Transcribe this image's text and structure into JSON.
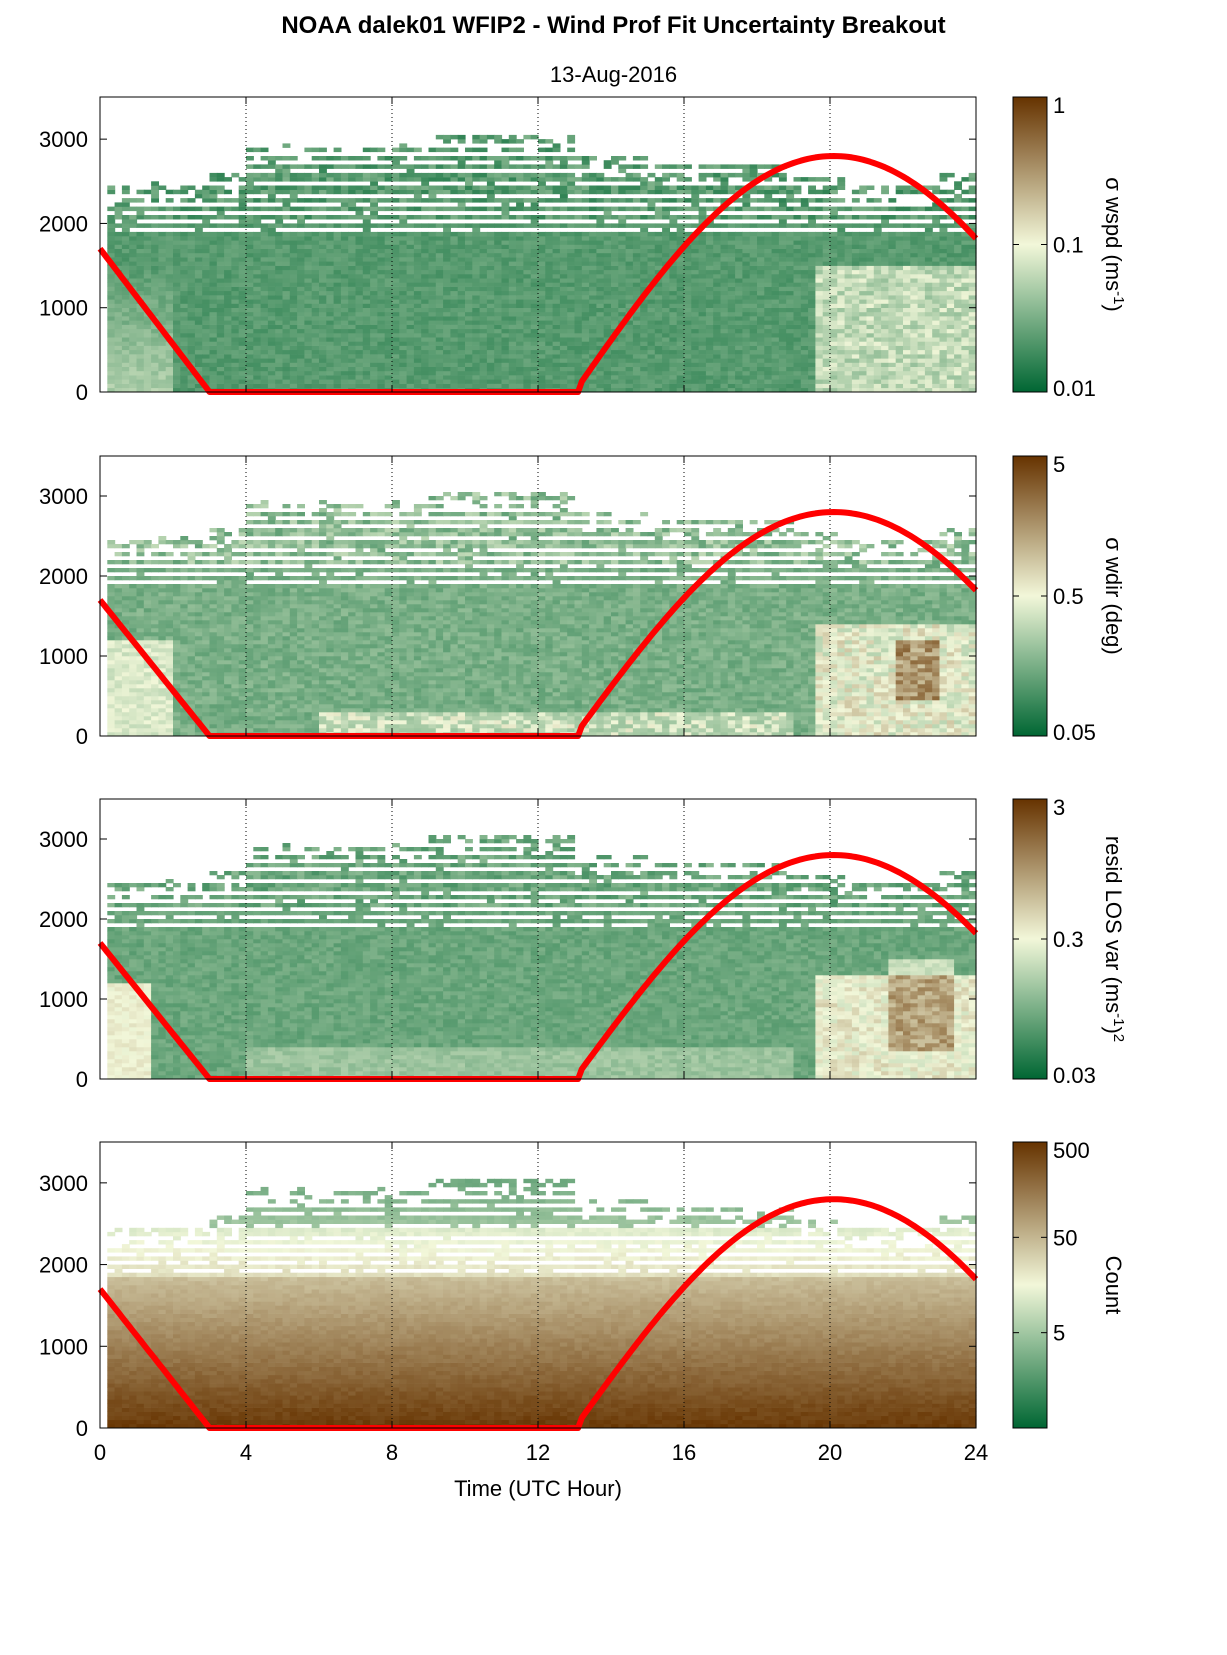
{
  "figure": {
    "title": "NOAA dalek01 WFIP2 - Wind Prof Fit Uncertainty Breakout",
    "subtitle": "13-Aug-2016",
    "xlabel": "Time (UTC Hour)"
  },
  "colors": {
    "low": "#006633",
    "mid": "#f2f7d9",
    "high": "#663300",
    "sun_curve": "#ff0000"
  },
  "chart_data": [
    {
      "type": "heatmap",
      "panel": 1,
      "x_ticks": [
        "0",
        "4",
        "8",
        "12",
        "16",
        "20",
        "24"
      ],
      "xlim": [
        0,
        24
      ],
      "y_ticks": [
        "0",
        "1000",
        "2000",
        "3000"
      ],
      "ylim": [
        0,
        3500
      ],
      "colorbar": {
        "label": "σ wspd (ms",
        "label_sup": "-1",
        "label_tail": ")",
        "scale": "log",
        "ticks": [
          "0.01",
          "0.1",
          "1"
        ],
        "range": [
          0.01,
          1
        ]
      },
      "grid": "vertical dotted at 4, 8, 12, 16, 20",
      "overlay_curve": {
        "color": "red",
        "x": [
          0,
          3,
          13,
          14,
          16,
          18,
          20,
          22,
          24
        ],
        "y": [
          1700,
          0,
          0,
          570,
          1650,
          2400,
          2800,
          2550,
          1800
        ]
      }
    },
    {
      "type": "heatmap",
      "panel": 2,
      "x_ticks": [
        "0",
        "4",
        "8",
        "12",
        "16",
        "20",
        "24"
      ],
      "xlim": [
        0,
        24
      ],
      "y_ticks": [
        "0",
        "1000",
        "2000",
        "3000"
      ],
      "ylim": [
        0,
        3500
      ],
      "colorbar": {
        "label": "σ wdir (deg)",
        "label_sup": "",
        "label_tail": "",
        "scale": "log",
        "ticks": [
          "0.05",
          "0.5",
          "5"
        ],
        "range": [
          0.05,
          5
        ]
      },
      "grid": "vertical dotted at 4, 8, 12, 16, 20",
      "overlay_curve": {
        "color": "red",
        "x": [
          0,
          3,
          13,
          14,
          16,
          18,
          20,
          22,
          24
        ],
        "y": [
          1700,
          0,
          0,
          570,
          1650,
          2400,
          2800,
          2550,
          1800
        ]
      }
    },
    {
      "type": "heatmap",
      "panel": 3,
      "x_ticks": [
        "0",
        "4",
        "8",
        "12",
        "16",
        "20",
        "24"
      ],
      "xlim": [
        0,
        24
      ],
      "y_ticks": [
        "0",
        "1000",
        "2000",
        "3000"
      ],
      "ylim": [
        0,
        3500
      ],
      "colorbar": {
        "label": "resid LOS var (ms",
        "label_sup": "-1",
        "label_tail": ")",
        "label_sup2": "2",
        "scale": "log",
        "ticks": [
          "0.03",
          "0.3",
          "3"
        ],
        "range": [
          0.03,
          3
        ]
      },
      "grid": "vertical dotted at 4, 8, 12, 16, 20",
      "overlay_curve": {
        "color": "red",
        "x": [
          0,
          3,
          13,
          14,
          16,
          18,
          20,
          22,
          24
        ],
        "y": [
          1700,
          0,
          0,
          570,
          1650,
          2400,
          2800,
          2550,
          1800
        ]
      }
    },
    {
      "type": "heatmap",
      "panel": 4,
      "x_ticks": [
        "0",
        "4",
        "8",
        "12",
        "16",
        "20",
        "24"
      ],
      "xlim": [
        0,
        24
      ],
      "y_ticks": [
        "0",
        "1000",
        "2000",
        "3000"
      ],
      "ylim": [
        0,
        3500
      ],
      "colorbar": {
        "label": "Count",
        "label_sup": "",
        "label_tail": "",
        "scale": "log",
        "ticks": [
          "5",
          "50",
          "500"
        ],
        "range": [
          0.5,
          500
        ]
      },
      "grid": "vertical dotted at 4, 8, 12, 16, 20",
      "overlay_curve": {
        "color": "red",
        "x": [
          0,
          3,
          13,
          14,
          16,
          18,
          20,
          22,
          24
        ],
        "y": [
          1700,
          0,
          0,
          570,
          1650,
          2400,
          2800,
          2550,
          1800
        ]
      }
    }
  ]
}
